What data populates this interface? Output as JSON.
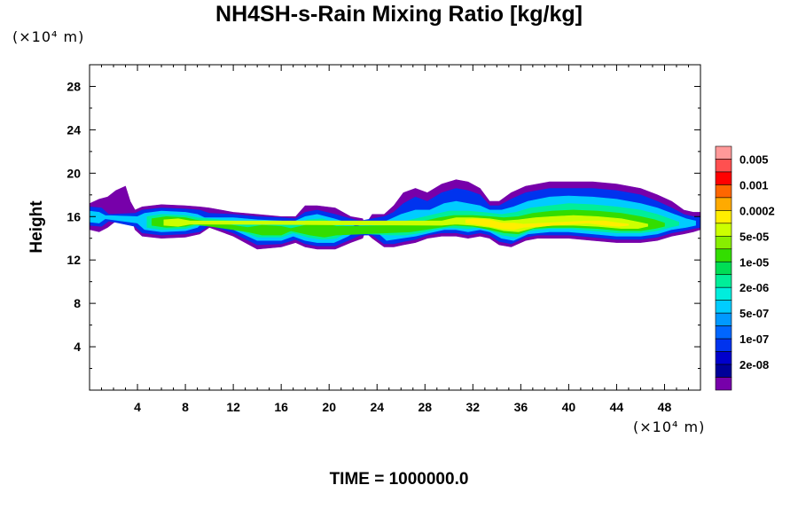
{
  "chart_data": {
    "type": "heatmap",
    "title": "NH4SH-s-Rain Mixing Ratio [kg/kg]",
    "ylabel": "Height",
    "xlabel": "",
    "y_unit": "(×10⁴ m)",
    "x_unit": "(×10⁴ m)",
    "xlim": [
      0,
      51
    ],
    "ylim": [
      0,
      30
    ],
    "x_ticks": [
      4,
      8,
      12,
      16,
      20,
      24,
      28,
      32,
      36,
      40,
      44,
      48
    ],
    "y_ticks": [
      4,
      8,
      12,
      16,
      20,
      24,
      28
    ],
    "colorbar": {
      "labels": [
        "0.005",
        "0.001",
        "0.0002",
        "5e-05",
        "1e-05",
        "2e-06",
        "5e-07",
        "1e-07",
        "2e-08"
      ],
      "colors": [
        "#ff9999",
        "#ff5050",
        "#ff0000",
        "#ff6600",
        "#ffaa00",
        "#ffee00",
        "#ccff00",
        "#88ee00",
        "#33dd00",
        "#00dd55",
        "#00ee99",
        "#00eedd",
        "#00ccff",
        "#0099ff",
        "#0066ff",
        "#0033ee",
        "#0000cc",
        "#000099",
        "#7700aa"
      ]
    },
    "layers": [
      {
        "level": "2e-08",
        "color": "#7700aa",
        "band": [
          [
            0,
            14.8,
            17.2
          ],
          [
            0.8,
            14.6,
            17.6
          ],
          [
            1.5,
            15.0,
            17.8
          ],
          [
            2.2,
            15.6,
            18.4
          ],
          [
            3.0,
            16.0,
            18.8
          ],
          [
            3.4,
            16.2,
            17.4
          ],
          [
            3.8,
            14.8,
            16.6
          ],
          [
            4.4,
            14.2,
            16.9
          ],
          [
            6,
            14.0,
            17.1
          ],
          [
            8,
            14.1,
            17.0
          ],
          [
            9.2,
            14.4,
            16.9
          ],
          [
            10,
            15.0,
            16.8
          ],
          [
            12,
            14.2,
            16.4
          ],
          [
            14,
            13.0,
            16.2
          ],
          [
            16,
            13.2,
            16.0
          ],
          [
            17.2,
            13.6,
            16.0
          ],
          [
            18,
            13.2,
            17.0
          ],
          [
            19,
            13.0,
            17.0
          ],
          [
            20.5,
            13.0,
            16.8
          ],
          [
            21.8,
            13.6,
            16.0
          ],
          [
            22.8,
            14.0,
            15.8
          ],
          [
            23,
            14.6,
            15.2
          ],
          [
            23.6,
            14.0,
            16.2
          ],
          [
            24.6,
            13.2,
            16.2
          ],
          [
            25.4,
            13.2,
            17.0
          ],
          [
            26.2,
            13.4,
            18.2
          ],
          [
            27.2,
            13.6,
            18.6
          ],
          [
            28.2,
            14.0,
            18.2
          ],
          [
            29.4,
            14.2,
            19.0
          ],
          [
            30.6,
            14.2,
            19.4
          ],
          [
            31.6,
            14.0,
            19.2
          ],
          [
            32.6,
            14.2,
            18.6
          ],
          [
            33.4,
            14.0,
            17.4
          ],
          [
            34.2,
            13.4,
            17.4
          ],
          [
            35.2,
            13.2,
            18.2
          ],
          [
            36.4,
            13.8,
            18.8
          ],
          [
            37.4,
            14.0,
            19.0
          ],
          [
            38.4,
            14.0,
            19.2
          ],
          [
            40,
            14.0,
            19.2
          ],
          [
            42,
            13.8,
            19.2
          ],
          [
            44,
            13.6,
            19.0
          ],
          [
            46,
            13.6,
            18.6
          ],
          [
            47.4,
            13.8,
            18.0
          ],
          [
            48.6,
            14.2,
            17.4
          ],
          [
            49.6,
            14.4,
            16.6
          ],
          [
            50.4,
            14.6,
            16.4
          ],
          [
            51,
            14.8,
            16.4
          ]
        ]
      },
      {
        "level": "1e-07",
        "color": "#0033ee",
        "band": [
          [
            0,
            15.2,
            16.9
          ],
          [
            1,
            15.1,
            16.8
          ],
          [
            1.6,
            15.6,
            16.2
          ],
          [
            3.8,
            15.1,
            16.3
          ],
          [
            4.4,
            14.5,
            16.6
          ],
          [
            6,
            14.3,
            16.8
          ],
          [
            8,
            14.4,
            16.7
          ],
          [
            9.2,
            14.6,
            16.6
          ],
          [
            10,
            15.2,
            16.3
          ],
          [
            12,
            14.5,
            16.2
          ],
          [
            14,
            13.4,
            16.0
          ],
          [
            16,
            13.5,
            15.9
          ],
          [
            17.2,
            13.9,
            15.8
          ],
          [
            18,
            13.5,
            16.4
          ],
          [
            19,
            13.3,
            16.6
          ],
          [
            20.5,
            13.3,
            16.2
          ],
          [
            21.8,
            13.9,
            15.8
          ],
          [
            22.6,
            14.3,
            15.6
          ],
          [
            23.6,
            14.3,
            15.8
          ],
          [
            24.6,
            13.5,
            16.0
          ],
          [
            25.4,
            13.5,
            16.4
          ],
          [
            26.2,
            13.7,
            17.2
          ],
          [
            27.2,
            13.9,
            17.8
          ],
          [
            28.2,
            14.3,
            17.4
          ],
          [
            29.4,
            14.5,
            18.2
          ],
          [
            30.6,
            14.5,
            18.6
          ],
          [
            31.6,
            14.3,
            18.4
          ],
          [
            32.6,
            14.5,
            18.0
          ],
          [
            33.4,
            14.3,
            17.0
          ],
          [
            34.2,
            13.7,
            17.0
          ],
          [
            35.2,
            13.5,
            17.6
          ],
          [
            36.4,
            14.1,
            18.2
          ],
          [
            37.4,
            14.3,
            18.4
          ],
          [
            38.4,
            14.3,
            18.6
          ],
          [
            40,
            14.3,
            18.6
          ],
          [
            42,
            14.1,
            18.6
          ],
          [
            44,
            13.9,
            18.4
          ],
          [
            46,
            13.9,
            18.0
          ],
          [
            47.4,
            14.1,
            17.4
          ],
          [
            48.6,
            14.5,
            16.8
          ],
          [
            49.6,
            14.7,
            16.2
          ],
          [
            50.4,
            14.9,
            16.0
          ],
          [
            51,
            15.0,
            16.0
          ]
        ]
      },
      {
        "level": "5e-07",
        "color": "#00ccff",
        "band": [
          [
            0,
            15.5,
            16.5
          ],
          [
            0.8,
            15.4,
            16.4
          ],
          [
            1.3,
            15.8,
            16.1
          ],
          [
            4.0,
            15.4,
            16.0
          ],
          [
            4.6,
            14.8,
            16.3
          ],
          [
            6,
            14.6,
            16.5
          ],
          [
            8,
            14.7,
            16.4
          ],
          [
            9.0,
            15.0,
            16.2
          ],
          [
            9.6,
            15.6,
            15.9
          ],
          [
            10.4,
            15.5,
            15.9
          ],
          [
            12,
            14.8,
            15.9
          ],
          [
            14,
            13.8,
            15.7
          ],
          [
            16,
            13.8,
            15.6
          ],
          [
            17,
            14.2,
            15.5
          ],
          [
            18,
            13.8,
            16.0
          ],
          [
            19,
            13.6,
            16.2
          ],
          [
            20.4,
            13.6,
            15.8
          ],
          [
            21.6,
            14.2,
            15.4
          ],
          [
            22.2,
            14.7,
            15.1
          ],
          [
            24,
            14.6,
            15.5
          ],
          [
            24.8,
            13.8,
            15.6
          ],
          [
            26,
            14.0,
            16.2
          ],
          [
            27.2,
            14.2,
            16.6
          ],
          [
            28.4,
            14.5,
            16.6
          ],
          [
            29.6,
            14.8,
            17.2
          ],
          [
            30.6,
            14.8,
            17.4
          ],
          [
            31.6,
            14.6,
            17.2
          ],
          [
            32.6,
            14.8,
            17.0
          ],
          [
            33.4,
            14.6,
            16.6
          ],
          [
            34.4,
            14.0,
            16.6
          ],
          [
            35.4,
            13.8,
            16.9
          ],
          [
            36.6,
            14.4,
            17.4
          ],
          [
            38.4,
            14.6,
            17.8
          ],
          [
            40,
            14.6,
            17.9
          ],
          [
            42,
            14.4,
            17.8
          ],
          [
            44,
            14.2,
            17.6
          ],
          [
            46,
            14.2,
            17.2
          ],
          [
            47.4,
            14.4,
            16.8
          ],
          [
            48.6,
            14.8,
            16.3
          ],
          [
            49.8,
            15.0,
            15.8
          ],
          [
            50.6,
            15.2,
            15.6
          ]
        ]
      },
      {
        "level": "2e-06",
        "color": "#00ee99",
        "band": [
          [
            4.8,
            15.0,
            16.0
          ],
          [
            6,
            14.8,
            16.2
          ],
          [
            8,
            14.9,
            16.1
          ],
          [
            9.0,
            15.2,
            15.9
          ],
          [
            12,
            15.0,
            15.6
          ],
          [
            14,
            14.1,
            15.4
          ],
          [
            16,
            14.1,
            15.3
          ],
          [
            17,
            14.5,
            15.2
          ],
          [
            18.2,
            14.1,
            15.7
          ],
          [
            19.4,
            13.9,
            15.8
          ],
          [
            20.6,
            14.0,
            15.4
          ],
          [
            21.4,
            14.5,
            15.1
          ],
          [
            25.2,
            14.3,
            15.2
          ],
          [
            26.4,
            14.3,
            15.6
          ],
          [
            27.6,
            14.5,
            15.9
          ],
          [
            28.8,
            14.8,
            16.2
          ],
          [
            30,
            15.0,
            16.5
          ],
          [
            31.6,
            14.9,
            16.5
          ],
          [
            32.8,
            15.0,
            16.4
          ],
          [
            34.4,
            14.3,
            16.2
          ],
          [
            35.6,
            14.1,
            16.4
          ],
          [
            36.8,
            14.7,
            16.8
          ],
          [
            38.4,
            14.9,
            17.0
          ],
          [
            40,
            14.9,
            17.2
          ],
          [
            42,
            14.7,
            17.1
          ],
          [
            44,
            14.5,
            16.9
          ],
          [
            46,
            14.5,
            16.6
          ],
          [
            47.4,
            14.7,
            16.2
          ],
          [
            48.4,
            15.0,
            15.8
          ],
          [
            49.2,
            15.2,
            15.5
          ]
        ]
      },
      {
        "level": "1e-05",
        "color": "#33dd00",
        "band": [
          [
            5.2,
            15.2,
            15.8
          ],
          [
            6.4,
            15.0,
            16.0
          ],
          [
            8,
            15.1,
            15.9
          ],
          [
            8.8,
            15.3,
            15.7
          ],
          [
            13.2,
            14.6,
            15.0
          ],
          [
            14.4,
            14.3,
            15.2
          ],
          [
            16,
            14.3,
            15.1
          ],
          [
            16.8,
            14.7,
            14.9
          ],
          [
            18.4,
            14.3,
            15.3
          ],
          [
            19.6,
            14.1,
            15.4
          ],
          [
            20.6,
            14.3,
            15.1
          ],
          [
            26.8,
            14.6,
            15.2
          ],
          [
            28,
            14.8,
            15.6
          ],
          [
            29.2,
            15.0,
            15.9
          ],
          [
            30.4,
            15.2,
            16.1
          ],
          [
            32,
            15.1,
            16.1
          ],
          [
            33.4,
            14.8,
            16.0
          ],
          [
            34.6,
            14.5,
            15.9
          ],
          [
            35.8,
            14.4,
            16.0
          ],
          [
            37,
            14.9,
            16.3
          ],
          [
            38.6,
            15.0,
            16.5
          ],
          [
            40.4,
            15.0,
            16.6
          ],
          [
            42.4,
            14.9,
            16.5
          ],
          [
            44.4,
            14.7,
            16.3
          ],
          [
            46,
            14.7,
            16.0
          ],
          [
            47.2,
            14.9,
            15.7
          ],
          [
            48,
            15.1,
            15.4
          ]
        ]
      },
      {
        "level": "5e-05",
        "color": "#ccff00",
        "band": [
          [
            6.2,
            15.2,
            15.7
          ],
          [
            7.4,
            15.1,
            15.8
          ],
          [
            8.4,
            15.3,
            15.6
          ],
          [
            29.4,
            15.2,
            15.6
          ],
          [
            30.6,
            15.3,
            15.9
          ],
          [
            32,
            15.2,
            15.9
          ],
          [
            33.4,
            15.0,
            15.8
          ],
          [
            34.6,
            14.7,
            15.6
          ],
          [
            35.8,
            14.6,
            15.7
          ],
          [
            37.2,
            15.0,
            15.9
          ],
          [
            38.6,
            15.2,
            16.0
          ],
          [
            40.4,
            15.2,
            16.1
          ],
          [
            42.4,
            15.1,
            16.0
          ],
          [
            44.4,
            14.9,
            15.8
          ],
          [
            45.8,
            14.9,
            15.5
          ],
          [
            46.6,
            15.1,
            15.3
          ]
        ]
      },
      {
        "level": "0.0002",
        "color": "#ffee00",
        "band": [
          [
            31.4,
            15.4,
            15.7
          ],
          [
            32.2,
            15.3,
            15.8
          ],
          [
            33.4,
            15.1,
            15.7
          ],
          [
            34.4,
            14.9,
            15.4
          ],
          [
            35.4,
            14.8,
            15.4
          ],
          [
            36.2,
            15.0,
            15.3
          ],
          [
            41.6,
            15.4,
            15.6
          ],
          [
            43.0,
            15.2,
            15.6
          ],
          [
            44.2,
            15.1,
            15.4
          ],
          [
            45,
            15.2,
            15.3
          ]
        ]
      }
    ],
    "grid": false,
    "time_label": "TIME = 1000000.0"
  }
}
